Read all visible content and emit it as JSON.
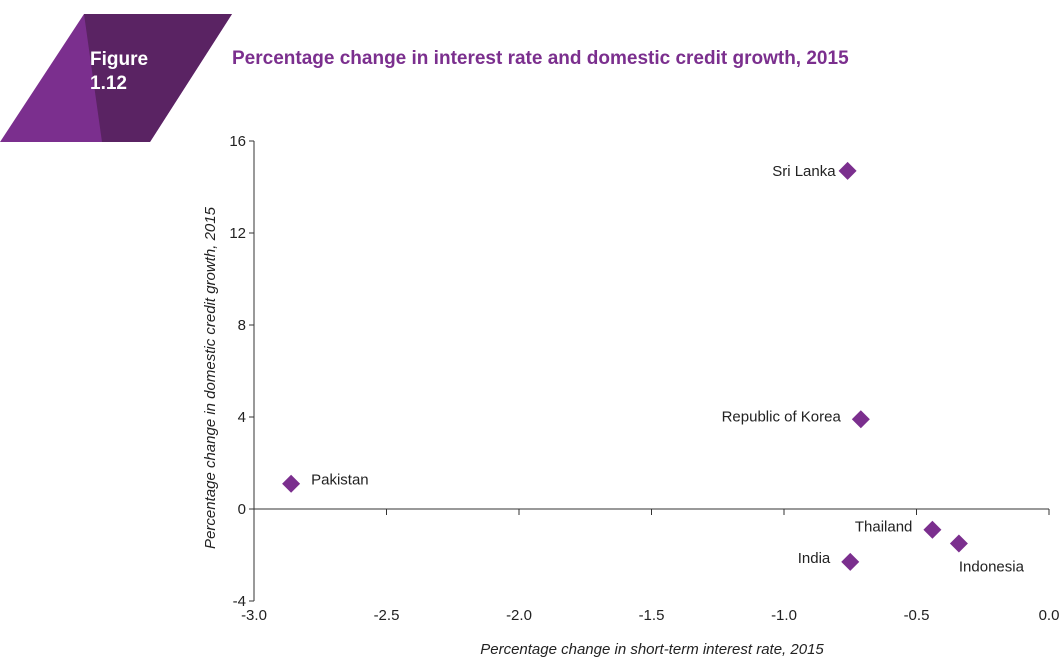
{
  "figure_label": {
    "line1": "Figure",
    "line2": "1.12"
  },
  "colors": {
    "badge_dark": "#5a2363",
    "badge_light": "#7b2f8e",
    "title": "#7b2f8e",
    "marker": "#7b2f8e"
  },
  "chart_data": {
    "type": "scatter",
    "title": "Percentage change in interest rate and domestic credit growth, 2015",
    "xlabel": "Percentage change in short-term interest rate, 2015",
    "ylabel": "Percentage change in domestic credit growth, 2015",
    "xlim": [
      -3.0,
      0.0
    ],
    "ylim": [
      -4,
      16
    ],
    "x_ticks": [
      "-3.0",
      "-2.5",
      "-2.0",
      "-1.5",
      "-1.0",
      "-0.5",
      "0.0"
    ],
    "x_tick_values": [
      -3.0,
      -2.5,
      -2.0,
      -1.5,
      -1.0,
      -0.5,
      0.0
    ],
    "y_ticks": [
      "-4",
      "0",
      "4",
      "8",
      "12",
      "16"
    ],
    "y_tick_values": [
      -4,
      0,
      4,
      8,
      12,
      16
    ],
    "grid": false,
    "legend": "none",
    "points": [
      {
        "label": "Sri Lanka",
        "x": -0.76,
        "y": 14.7
      },
      {
        "label": "Republic of Korea",
        "x": -0.71,
        "y": 3.9
      },
      {
        "label": "Pakistan",
        "x": -2.86,
        "y": 1.1
      },
      {
        "label": "Thailand",
        "x": -0.44,
        "y": -0.9
      },
      {
        "label": "Indonesia",
        "x": -0.34,
        "y": -1.5
      },
      {
        "label": "India",
        "x": -0.75,
        "y": -2.3
      }
    ]
  }
}
